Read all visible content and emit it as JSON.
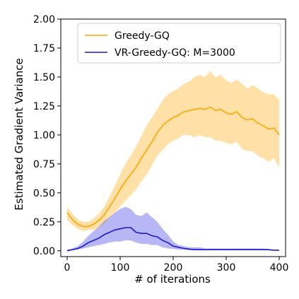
{
  "chart_data": {
    "type": "line",
    "title": "",
    "xlabel": "# of iterations",
    "ylabel": "Estimated Gradient Variance",
    "xlim": [
      -12,
      412
    ],
    "ylim": [
      -0.05,
      2.0
    ],
    "xticks": [
      0,
      100,
      200,
      300,
      400
    ],
    "xtick_labels": [
      "0",
      "100",
      "200",
      "300",
      "400"
    ],
    "yticks": [
      0.0,
      0.25,
      0.5,
      0.75,
      1.0,
      1.25,
      1.5,
      1.75,
      2.0
    ],
    "ytick_labels": [
      "0.00",
      "0.25",
      "0.50",
      "0.75",
      "1.00",
      "1.25",
      "1.50",
      "1.75",
      "2.00"
    ],
    "grid": false,
    "legend_position": "top-right",
    "series": [
      {
        "name": "Greedy-GQ",
        "color": "#FFA500",
        "band_color": "#FFA500",
        "x": [
          0,
          10,
          20,
          30,
          40,
          50,
          60,
          70,
          80,
          90,
          100,
          110,
          120,
          130,
          140,
          150,
          160,
          170,
          180,
          190,
          200,
          210,
          220,
          230,
          240,
          250,
          260,
          270,
          280,
          290,
          300,
          310,
          320,
          330,
          340,
          350,
          360,
          370,
          380,
          390,
          400
        ],
        "mean": [
          0.33,
          0.27,
          0.23,
          0.21,
          0.21,
          0.23,
          0.26,
          0.31,
          0.38,
          0.45,
          0.53,
          0.6,
          0.66,
          0.72,
          0.8,
          0.87,
          0.94,
          1.02,
          1.08,
          1.12,
          1.15,
          1.17,
          1.2,
          1.21,
          1.22,
          1.23,
          1.22,
          1.24,
          1.21,
          1.22,
          1.19,
          1.18,
          1.2,
          1.15,
          1.13,
          1.14,
          1.1,
          1.08,
          1.05,
          1.06,
          1.0
        ],
        "lower": [
          0.27,
          0.22,
          0.19,
          0.17,
          0.18,
          0.18,
          0.2,
          0.23,
          0.28,
          0.33,
          0.38,
          0.43,
          0.48,
          0.53,
          0.6,
          0.66,
          0.74,
          0.82,
          0.87,
          0.92,
          0.95,
          0.97,
          1.0,
          1.0,
          0.98,
          1.0,
          0.98,
          0.98,
          0.95,
          0.95,
          0.93,
          0.92,
          0.94,
          0.88,
          0.86,
          0.86,
          0.82,
          0.8,
          0.77,
          0.8,
          0.72
        ],
        "upper": [
          0.38,
          0.32,
          0.27,
          0.25,
          0.25,
          0.28,
          0.32,
          0.38,
          0.47,
          0.56,
          0.66,
          0.75,
          0.82,
          0.9,
          0.99,
          1.08,
          1.15,
          1.22,
          1.3,
          1.35,
          1.38,
          1.4,
          1.44,
          1.46,
          1.5,
          1.52,
          1.5,
          1.55,
          1.5,
          1.52,
          1.47,
          1.45,
          1.48,
          1.44,
          1.4,
          1.43,
          1.4,
          1.37,
          1.35,
          1.35,
          1.3
        ]
      },
      {
        "name": "VR-Greedy-GQ: M=3000",
        "color": "#1A1ACC",
        "band_color": "#7B7BEF",
        "x": [
          0,
          10,
          20,
          30,
          40,
          50,
          60,
          70,
          80,
          90,
          100,
          110,
          120,
          130,
          140,
          150,
          160,
          170,
          180,
          190,
          200,
          210,
          220,
          230,
          240,
          250,
          260,
          270,
          280,
          290,
          300,
          310,
          320,
          330,
          340,
          350,
          360,
          370,
          380,
          390,
          400
        ],
        "mean": [
          0.0,
          0.01,
          0.02,
          0.04,
          0.07,
          0.09,
          0.11,
          0.14,
          0.16,
          0.18,
          0.19,
          0.2,
          0.2,
          0.16,
          0.15,
          0.15,
          0.13,
          0.12,
          0.09,
          0.07,
          0.04,
          0.03,
          0.02,
          0.015,
          0.01,
          0.01,
          0.01,
          0.01,
          0.01,
          0.01,
          0.01,
          0.01,
          0.01,
          0.01,
          0.01,
          0.01,
          0.01,
          0.01,
          0.01,
          0.005,
          0.005
        ],
        "lower": [
          0.0,
          0.005,
          0.01,
          0.02,
          0.03,
          0.04,
          0.05,
          0.06,
          0.07,
          0.08,
          0.08,
          0.09,
          0.09,
          0.07,
          0.06,
          0.06,
          0.05,
          0.05,
          0.03,
          0.02,
          0.015,
          0.01,
          0.01,
          0.005,
          0.005,
          0.005,
          0.005,
          0.005,
          0.005,
          0.005,
          0.005,
          0.005,
          0.005,
          0.005,
          0.005,
          0.005,
          0.005,
          0.005,
          0.005,
          0.0,
          0.0
        ],
        "upper": [
          0.01,
          0.02,
          0.04,
          0.08,
          0.13,
          0.17,
          0.21,
          0.26,
          0.29,
          0.33,
          0.36,
          0.38,
          0.36,
          0.31,
          0.3,
          0.33,
          0.29,
          0.25,
          0.19,
          0.14,
          0.08,
          0.05,
          0.04,
          0.03,
          0.03,
          0.03,
          0.02,
          0.02,
          0.02,
          0.02,
          0.02,
          0.02,
          0.02,
          0.02,
          0.02,
          0.02,
          0.02,
          0.02,
          0.015,
          0.01,
          0.01
        ]
      }
    ]
  }
}
